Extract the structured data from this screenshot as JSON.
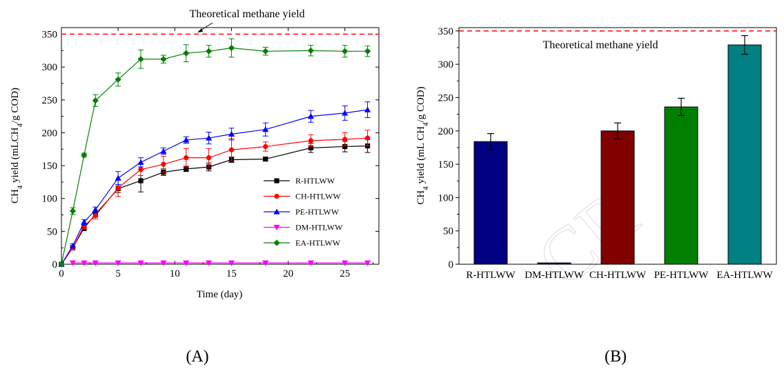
{
  "chart_data": [
    {
      "panel_label": "(A)",
      "type": "line",
      "xlabel": "Time (day)",
      "ylabel": "CH₄ yield (mLCH₄/g COD)",
      "xlim": [
        0,
        28
      ],
      "ylim": [
        0,
        360
      ],
      "xticks": [
        0,
        5,
        10,
        15,
        20,
        25
      ],
      "yticks": [
        0,
        50,
        100,
        150,
        200,
        250,
        300,
        350
      ],
      "legend_position": "bottom-right",
      "grid": false,
      "reference_line": {
        "value": 350,
        "label": "Theoretical methane yield",
        "color": "#ff0000"
      },
      "series": [
        {
          "name": "R-HTLWW",
          "color": "#000000",
          "marker": "square",
          "x": [
            0,
            1,
            2,
            3,
            5,
            7,
            9,
            11,
            13,
            15,
            18,
            22,
            25,
            27
          ],
          "y": [
            0,
            25,
            55,
            76,
            115,
            127,
            140,
            145,
            148,
            159,
            160,
            177,
            179,
            180
          ],
          "err": [
            0,
            3,
            4,
            4,
            6,
            17,
            5,
            4,
            6,
            4,
            3,
            7,
            8,
            10
          ]
        },
        {
          "name": "CH-HTLWW",
          "color": "#ff0000",
          "marker": "circle",
          "x": [
            0,
            1,
            2,
            3,
            5,
            7,
            9,
            11,
            13,
            15,
            18,
            22,
            25,
            27
          ],
          "y": [
            0,
            25,
            58,
            74,
            116,
            144,
            152,
            162,
            162,
            174,
            179,
            188,
            190,
            192
          ],
          "err": [
            0,
            3,
            4,
            5,
            13,
            9,
            12,
            14,
            14,
            17,
            7,
            9,
            10,
            12
          ]
        },
        {
          "name": "PE-HTLWW",
          "color": "#0000ff",
          "marker": "triangle",
          "x": [
            0,
            1,
            2,
            3,
            5,
            7,
            9,
            11,
            13,
            15,
            18,
            22,
            25,
            27
          ],
          "y": [
            0,
            28,
            64,
            83,
            131,
            155,
            172,
            189,
            192,
            198,
            205,
            225,
            230,
            235
          ],
          "err": [
            0,
            3,
            4,
            4,
            10,
            7,
            5,
            5,
            9,
            9,
            10,
            9,
            11,
            12
          ]
        },
        {
          "name": "DM-HTLWW",
          "color": "#ff00ff",
          "marker": "triangle-down",
          "x": [
            1,
            2,
            3,
            5,
            7,
            9,
            11,
            13,
            15,
            18,
            22,
            25,
            27
          ],
          "y": [
            2,
            2,
            2,
            2,
            2,
            2,
            2,
            2,
            2,
            2,
            2,
            2,
            2
          ],
          "err": [
            0,
            0,
            0,
            0,
            0,
            0,
            0,
            0,
            0,
            0,
            0,
            0,
            0
          ]
        },
        {
          "name": "EA-HTLWW",
          "color": "#008000",
          "marker": "diamond",
          "x": [
            0,
            1,
            2,
            3,
            5,
            7,
            9,
            11,
            13,
            15,
            18,
            22,
            25,
            27
          ],
          "y": [
            0,
            81,
            166,
            249,
            281,
            312,
            312,
            321,
            324,
            329,
            324,
            325,
            324,
            324
          ],
          "err": [
            0,
            5,
            3,
            9,
            10,
            14,
            6,
            13,
            9,
            14,
            6,
            8,
            9,
            8
          ]
        }
      ]
    },
    {
      "panel_label": "(B)",
      "type": "bar",
      "xlabel": "",
      "ylabel": "CH₄ yield (mL CH₄/g COD)",
      "ylim": [
        0,
        355
      ],
      "yticks": [
        0,
        50,
        100,
        150,
        200,
        250,
        300,
        350
      ],
      "grid": false,
      "reference_line": {
        "value": 350,
        "label": "Theoretical methane yield",
        "color": "#ff0000"
      },
      "categories": [
        "R-HTLWW",
        "DM-HTLWW",
        "CH-HTLWW",
        "PE-HTLWW",
        "EA-HTLWW"
      ],
      "values": [
        184,
        2,
        200,
        236,
        329
      ],
      "errors": [
        12,
        0,
        12,
        13,
        14
      ],
      "colors": [
        "#000080",
        "#000080",
        "#800000",
        "#008000",
        "#008080"
      ]
    }
  ]
}
